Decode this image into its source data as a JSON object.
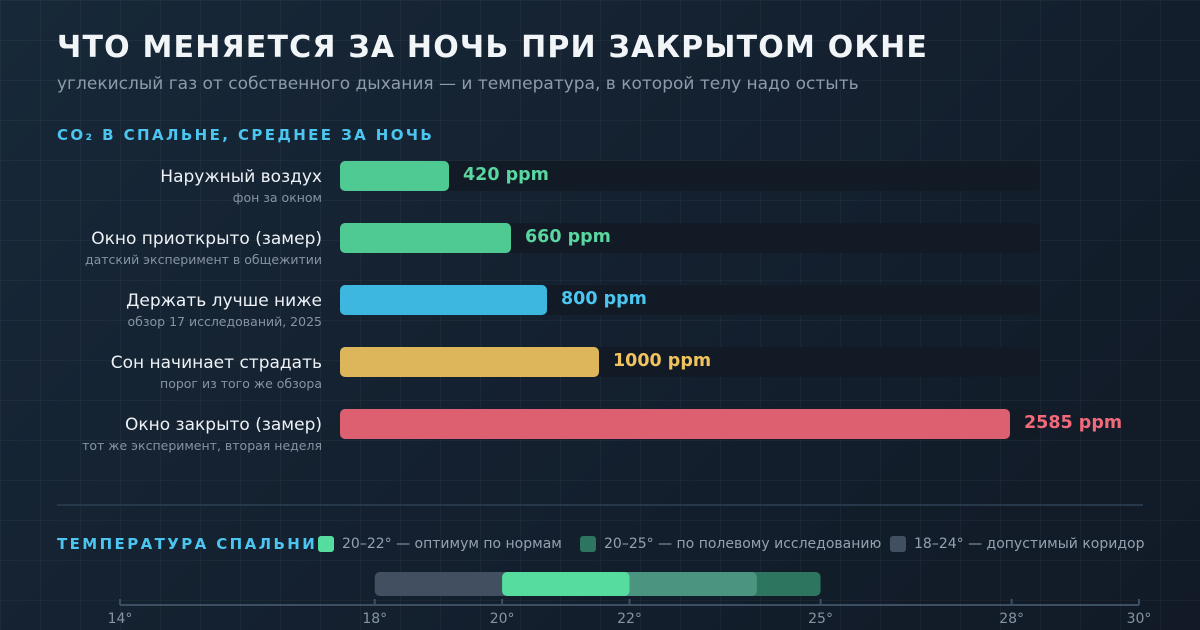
{
  "title": "ЧТО МЕНЯЕТСЯ ЗА НОЧЬ ПРИ ЗАКРЫТОМ ОКНЕ",
  "subtitle": "углекислый газ от собственного дыхания — и температура, в которой телу надо остыть",
  "chart_data": [
    {
      "type": "bar",
      "orientation": "horizontal",
      "title": "CO₂ В СПАЛЬНЕ, СРЕДНЕЕ ЗА НОЧЬ",
      "xlim": [
        0,
        2700
      ],
      "unit": "ppm",
      "categories": [
        "Наружный воздух",
        "Окно приоткрыто (замер)",
        "Держать лучше ниже",
        "Сон начинает страдать",
        "Окно закрыто (замер)"
      ],
      "notes": [
        "фон за окном",
        "датский эксперимент в общежитии",
        "обзор 17 исследований, 2025",
        "порог из того же обзора",
        "тот же эксперимент, вторая неделя"
      ],
      "values": [
        420,
        660,
        800,
        1000,
        2585
      ],
      "value_labels": [
        "420 ppm",
        "660 ppm",
        "800 ppm",
        "1000 ppm",
        "2585 ppm"
      ],
      "colors": [
        "#4fca93",
        "#4fca93",
        "#3db7e0",
        "#ddb65c",
        "#dc6070"
      ],
      "label_colors": [
        "#5ad6a0",
        "#5ad6a0",
        "#4cc6f0",
        "#f0c35e",
        "#f06a7a"
      ]
    },
    {
      "type": "range",
      "title": "ТЕМПЕРАТУРА СПАЛЬНИ",
      "xlim": [
        14,
        30
      ],
      "ticks": [
        14,
        18,
        20,
        22,
        25,
        28,
        30
      ],
      "tick_labels": [
        "14°",
        "18°",
        "20°",
        "22°",
        "25°",
        "28°",
        "30°"
      ],
      "ranges": [
        {
          "from": 18,
          "to": 24,
          "color": "#414f60"
        },
        {
          "from": 20,
          "to": 25,
          "color": "#2e7560"
        },
        {
          "from": 20,
          "to": 22,
          "color": "#57dca0"
        }
      ],
      "legend": [
        {
          "label": "20–22° — оптимум по нормам",
          "color": "#57dca0"
        },
        {
          "label": "20–25° — по полевому исследованию",
          "color": "#2e7560"
        },
        {
          "label": "18–24° — допустимый коридор",
          "color": "#414f60"
        }
      ]
    }
  ]
}
